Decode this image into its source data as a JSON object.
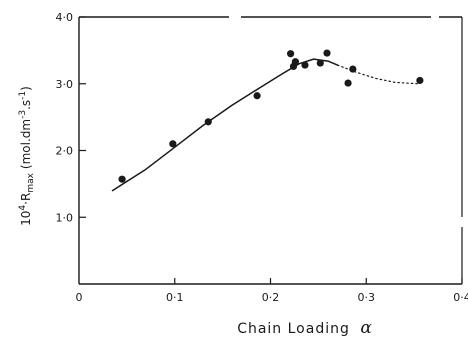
{
  "chart_data": {
    "type": "scatter",
    "xlabel": "Chain Loading",
    "xlabel_symbol": "α",
    "ylabel_prefix": "10",
    "ylabel_exp": "4",
    "ylabel_main": "·R",
    "ylabel_sub": "max",
    "ylabel_units": "(mol.dm",
    "ylabel_units_exp": "-3",
    "ylabel_units_mid": ".s",
    "ylabel_units_exp2": "-1",
    "ylabel_units_close": ")",
    "xlim": [
      0,
      0.4
    ],
    "ylim": [
      0,
      4
    ],
    "x_ticks": [
      0,
      0.1,
      0.2,
      0.3,
      0.4
    ],
    "x_tick_labels": [
      "0",
      "0·1",
      "0·2",
      "0·3",
      "0·4"
    ],
    "y_ticks": [
      1,
      2,
      3,
      4
    ],
    "y_tick_labels": [
      "1·0",
      "2·0",
      "3·0",
      "4·0"
    ],
    "grid": false,
    "legend": "none",
    "series": [
      {
        "style": "markers",
        "points": [
          {
            "x": 0.045,
            "y": 1.57
          },
          {
            "x": 0.098,
            "y": 2.1
          },
          {
            "x": 0.135,
            "y": 2.43
          },
          {
            "x": 0.186,
            "y": 2.82
          },
          {
            "x": 0.221,
            "y": 3.45
          },
          {
            "x": 0.224,
            "y": 3.26
          },
          {
            "x": 0.226,
            "y": 3.33
          },
          {
            "x": 0.236,
            "y": 3.28
          },
          {
            "x": 0.252,
            "y": 3.31
          },
          {
            "x": 0.259,
            "y": 3.46
          },
          {
            "x": 0.281,
            "y": 3.01
          },
          {
            "x": 0.286,
            "y": 3.22
          },
          {
            "x": 0.356,
            "y": 3.05
          }
        ]
      },
      {
        "style": "solid-curve",
        "points": [
          {
            "x": 0.035,
            "y": 1.4
          },
          {
            "x": 0.07,
            "y": 1.72
          },
          {
            "x": 0.1,
            "y": 2.05
          },
          {
            "x": 0.13,
            "y": 2.38
          },
          {
            "x": 0.16,
            "y": 2.68
          },
          {
            "x": 0.19,
            "y": 2.95
          },
          {
            "x": 0.21,
            "y": 3.13
          },
          {
            "x": 0.23,
            "y": 3.3
          },
          {
            "x": 0.245,
            "y": 3.37
          },
          {
            "x": 0.26,
            "y": 3.34
          },
          {
            "x": 0.27,
            "y": 3.28
          }
        ]
      },
      {
        "style": "dotted-curve",
        "points": [
          {
            "x": 0.27,
            "y": 3.28
          },
          {
            "x": 0.29,
            "y": 3.17
          },
          {
            "x": 0.31,
            "y": 3.08
          },
          {
            "x": 0.33,
            "y": 3.02
          },
          {
            "x": 0.355,
            "y": 3.0
          }
        ]
      }
    ]
  }
}
